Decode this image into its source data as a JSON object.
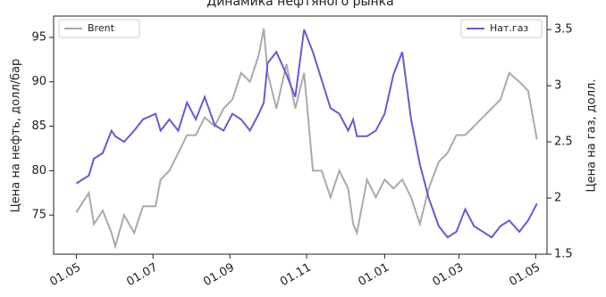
{
  "chart_data": {
    "type": "line",
    "title": "Динамика нефтяного рынка",
    "y_label": "Цена на нефть, долл/бар",
    "y2_label": "Цена на газ, долл.",
    "x": [
      0,
      10,
      14,
      21,
      28,
      31,
      38,
      46,
      53,
      63,
      67,
      74,
      81,
      88,
      95,
      102,
      110,
      117,
      124,
      131,
      138,
      145,
      149,
      152,
      159,
      167,
      174,
      181,
      188,
      195,
      202,
      209,
      216,
      220,
      223,
      231,
      238,
      245,
      252,
      259,
      266,
      273,
      280,
      288,
      295,
      302,
      309,
      316,
      323,
      330,
      337,
      344,
      352,
      359,
      366
    ],
    "series": [
      {
        "name": "Brent",
        "color": "#aaaaaa",
        "axis": "y",
        "values": [
          75.3,
          77.5,
          74,
          75.5,
          73,
          71.5,
          75,
          73,
          76,
          76,
          79,
          80,
          82,
          84,
          84,
          86,
          85,
          87,
          88,
          91,
          90,
          93,
          96,
          91,
          87,
          92,
          87,
          91,
          80,
          80,
          77,
          80,
          78,
          74,
          73,
          79,
          77,
          79,
          78,
          79,
          77,
          74,
          78,
          81,
          82,
          84,
          84,
          85,
          86,
          87,
          88,
          91,
          90,
          89,
          83.5
        ]
      },
      {
        "name": "Нат.газ",
        "color": "#6a5acd",
        "axis": "y2",
        "values": [
          2.13,
          2.2,
          2.35,
          2.4,
          2.6,
          2.55,
          2.5,
          2.6,
          2.7,
          2.75,
          2.6,
          2.7,
          2.6,
          2.85,
          2.7,
          2.9,
          2.65,
          2.6,
          2.75,
          2.7,
          2.6,
          2.75,
          2.85,
          3.2,
          3.3,
          3.1,
          2.9,
          3.5,
          3.3,
          3.05,
          2.8,
          2.75,
          2.6,
          2.7,
          2.55,
          2.55,
          2.6,
          2.75,
          3.1,
          3.3,
          2.7,
          2.3,
          2.0,
          1.75,
          1.65,
          1.7,
          1.9,
          1.75,
          1.7,
          1.65,
          1.75,
          1.8,
          1.7,
          1.8,
          1.95
        ]
      }
    ],
    "xlim": [
      -18,
      374
    ],
    "xticks": [
      {
        "value": 0,
        "label": "01.05"
      },
      {
        "value": 61,
        "label": "01.07"
      },
      {
        "value": 122,
        "label": "01.09"
      },
      {
        "value": 183,
        "label": "01.11"
      },
      {
        "value": 245,
        "label": "01.01"
      },
      {
        "value": 304,
        "label": "01.03"
      },
      {
        "value": 365,
        "label": "01.05"
      }
    ],
    "ylim": [
      70.6,
      97.4
    ],
    "yticks": [
      75,
      80,
      85,
      90,
      95
    ],
    "y2lim": [
      1.5,
      3.62
    ],
    "y2ticks": [
      1.5,
      2.0,
      2.5,
      3.0,
      3.5
    ],
    "legend": [
      "upper left",
      "upper right"
    ]
  }
}
